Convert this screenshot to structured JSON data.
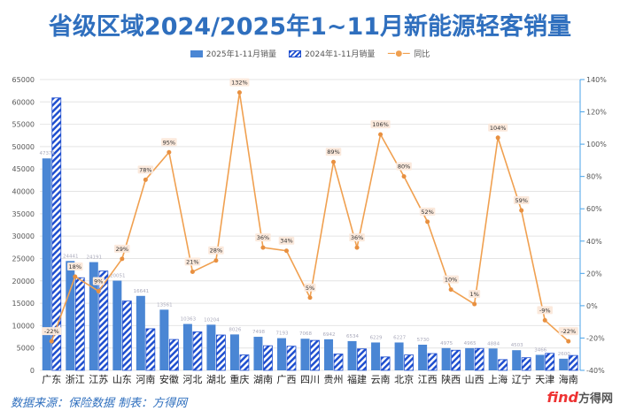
{
  "chart_data": {
    "type": "bar",
    "title": "省级区域2024/2025年1~11月新能源轻客销量",
    "categories": [
      "广东",
      "浙江",
      "江苏",
      "山东",
      "河南",
      "安徽",
      "河北",
      "湖北",
      "重庆",
      "湖南",
      "广西",
      "四川",
      "贵州",
      "福建",
      "云南",
      "北京",
      "江西",
      "陕西",
      "山西",
      "上海",
      "辽宁",
      "天津",
      "海南"
    ],
    "series": [
      {
        "name": "2025年1-11月销量",
        "type": "bar",
        "axis": "left",
        "color": "#4a86d4",
        "values": [
          47371,
          24441,
          24191,
          20051,
          16641,
          13561,
          10363,
          10204,
          8026,
          7498,
          7193,
          7068,
          6942,
          6534,
          6229,
          6227,
          5730,
          4975,
          4965,
          4884,
          4503,
          3466,
          2600
        ]
      },
      {
        "name": "2024年1-11月销量",
        "type": "bar",
        "axis": "left",
        "pattern": "hatched",
        "color": "#1f4fcf",
        "values": [
          60900,
          20700,
          22200,
          15500,
          9300,
          6900,
          8600,
          7900,
          3450,
          5500,
          5400,
          6700,
          3650,
          4800,
          3000,
          3450,
          3750,
          4500,
          4900,
          2400,
          2830,
          3800,
          3330
        ]
      },
      {
        "name": "同比",
        "type": "line",
        "axis": "right",
        "color": "#f0a050",
        "values": [
          -22,
          18,
          9,
          29,
          78,
          95,
          21,
          28,
          132,
          36,
          34,
          5,
          89,
          36,
          106,
          80,
          52,
          10,
          1,
          104,
          59,
          -9,
          -22
        ],
        "labels": [
          "-22%",
          "18%",
          "9%",
          "29%",
          "78%",
          "95%",
          "21%",
          "28%",
          "132%",
          "36%",
          "34%",
          "5%",
          "89%",
          "36%",
          "106%",
          "80%",
          "52%",
          "10%",
          "1%",
          "104%",
          "59%",
          "-9%",
          "-22%"
        ]
      }
    ],
    "ylim": [
      0,
      65000
    ],
    "yticks": [
      "0",
      "5000",
      "10000",
      "15000",
      "20000",
      "25000",
      "30000",
      "35000",
      "40000",
      "45000",
      "50000",
      "55000",
      "60000",
      "65000"
    ],
    "y2lim": [
      -40,
      140
    ],
    "y2ticks": [
      "-40%",
      "-20%",
      "0%",
      "20%",
      "40%",
      "60%",
      "80%",
      "100%",
      "120%",
      "140%"
    ],
    "grid": true,
    "legend": "top"
  },
  "footer": {
    "source": "数据来源：保险数据 制表：方得网",
    "logo": "find",
    "logo_cn": "方得网"
  }
}
